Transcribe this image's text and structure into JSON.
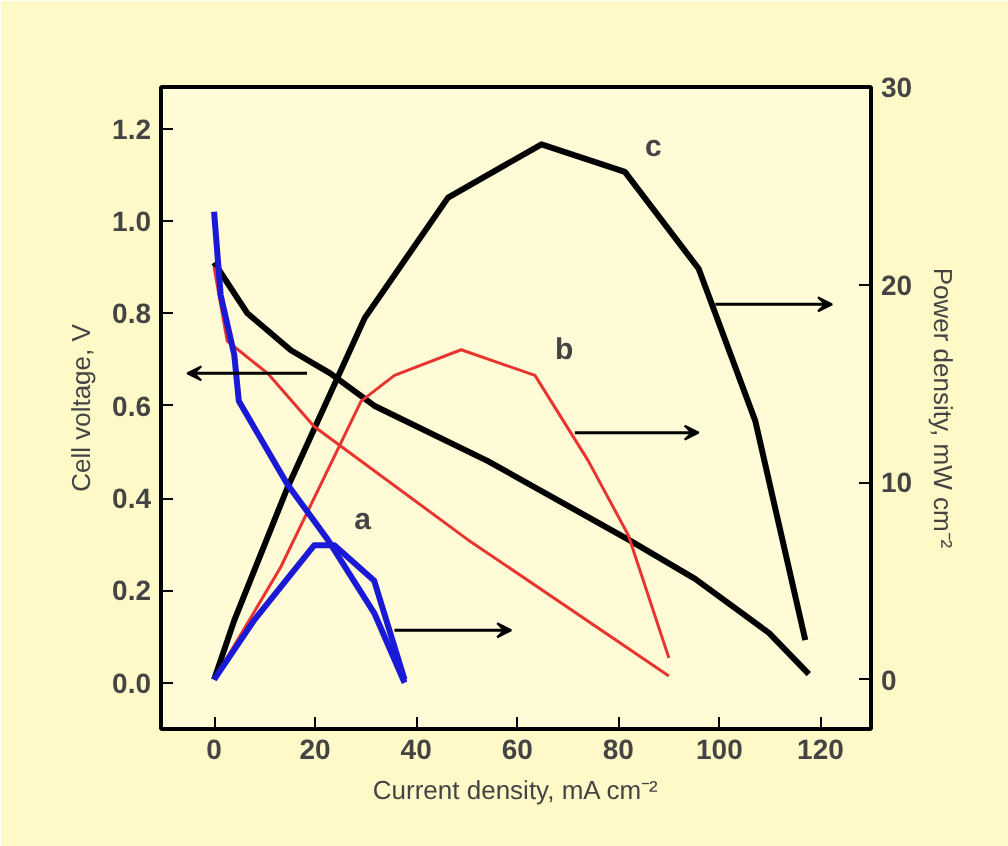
{
  "chart_data": {
    "type": "line",
    "xlabel": "Current density, mA cm⁻²",
    "ylabel": "Cell voltage, V",
    "y2label": "Power density, mW cm⁻²",
    "xlim": [
      -10.5,
      130
    ],
    "xticks": [
      0,
      20,
      40,
      60,
      80,
      100,
      120
    ],
    "ylim": [
      -0.1,
      1.29
    ],
    "yticks": [
      {
        "value": 0,
        "label": "0.0"
      },
      0.2,
      0.4,
      0.6,
      0.8,
      {
        "value": 1,
        "label": "1.0"
      },
      1.2
    ],
    "y2lim": [
      -2.5,
      30
    ],
    "y2ticks": [
      0,
      10,
      20,
      30
    ],
    "grid": false,
    "marker": "none",
    "line_style": "solid",
    "series": [
      {
        "color": "#000000",
        "axis": "y",
        "x": [
          0,
          6.6,
          15.2,
          23,
          31.7,
          54.2,
          82,
          95.2,
          109.8,
          117.7
        ],
        "values": [
          0.91,
          0.8,
          0.72,
          0.67,
          0.6,
          0.48,
          0.31,
          0.225,
          0.108,
          0.019
        ]
      },
      {
        "name": "c",
        "color": "#000000",
        "axis": "y2",
        "x": [
          0,
          4,
          14.5,
          29.8,
          46.3,
          64.8,
          81.3,
          95.9,
          107.1,
          117
        ],
        "values": [
          0,
          3.0,
          9.7,
          18.3,
          24.4,
          27.1,
          25.7,
          20.8,
          13.1,
          2.0
        ]
      },
      {
        "color": "#e8332f",
        "axis": "y",
        "x": [
          0,
          2.6,
          10.6,
          19.8,
          50.2,
          90
        ],
        "values": [
          0.9,
          0.74,
          0.67,
          0.555,
          0.31,
          0.015
        ]
      },
      {
        "name": "b",
        "color": "#e8332f",
        "axis": "y2",
        "x": [
          0,
          13.2,
          29.1,
          35.7,
          48.9,
          63.5,
          74,
          82,
          90
        ],
        "values": [
          0,
          5.7,
          14.1,
          15.4,
          16.7,
          15.4,
          11.1,
          7.3,
          1.1
        ]
      },
      {
        "color": "#1a1ad6",
        "axis": "y",
        "x": [
          0,
          1.3,
          4,
          4.9,
          14.5,
          22.5,
          31.7,
          37.7
        ],
        "values": [
          1.02,
          0.84,
          0.71,
          0.61,
          0.43,
          0.31,
          0.151,
          0.0
        ]
      },
      {
        "name": "a",
        "color": "#1a1ad6",
        "axis": "y2",
        "x": [
          0,
          7.9,
          19.8,
          23.8,
          31.7,
          37.7
        ],
        "values": [
          0,
          3.0,
          6.8,
          6.8,
          5.0,
          0
        ]
      }
    ]
  }
}
